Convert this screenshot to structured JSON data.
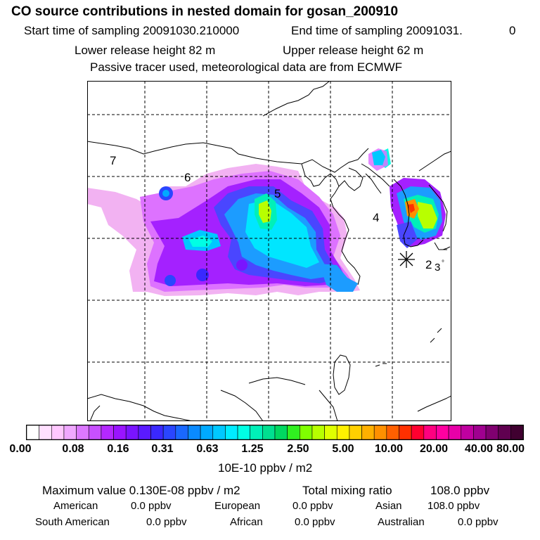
{
  "header": {
    "title": "CO  source contributions in nested domain for gosan_200910",
    "start_label": "Start time of sampling 20091030.210000",
    "end_label": "End time of sampling 20091031.",
    "end_value": "0",
    "lower_label": "Lower release height   82 m",
    "upper_label": "Upper release height   62 m",
    "note": "Passive tracer used, meteorological data are from ECMWF"
  },
  "map": {
    "point_labels": [
      "7",
      "6",
      "5",
      "4",
      "2",
      "3"
    ],
    "degree_mark": "°"
  },
  "colorbar": {
    "tick_labels": [
      "0.00",
      "0.08",
      "0.16",
      "0.31",
      "0.63",
      "1.25",
      "2.50",
      "5.00",
      "10.00",
      "20.00",
      "40.00",
      "80.00"
    ],
    "colors": [
      "#ffffff",
      "#ffe0ff",
      "#ffc8ff",
      "#f0a8ff",
      "#dc78ff",
      "#c850ff",
      "#b428ff",
      "#9a14ff",
      "#7a14ff",
      "#5a1aff",
      "#3a28ff",
      "#2a46ff",
      "#1a68ff",
      "#0a8aff",
      "#00aaff",
      "#00c8ff",
      "#00ecff",
      "#00ffe4",
      "#00f0b8",
      "#00e090",
      "#00d860",
      "#30f020",
      "#80ff00",
      "#b8ff00",
      "#e0ff00",
      "#fff000",
      "#ffd000",
      "#ffb000",
      "#ff9000",
      "#ff6000",
      "#ff3000",
      "#ff0030",
      "#ff0080",
      "#ff00a0",
      "#e800a8",
      "#c000a0",
      "#a00090",
      "#800070",
      "#600050",
      "#400030"
    ],
    "units": "10E-10 ppbv / m2"
  },
  "stats": {
    "max_label": "Maximum value  0.130E-08 ppbv / m2",
    "total_label": "Total mixing ratio",
    "total_value": "108.0 ppbv",
    "regions": [
      {
        "name": "American",
        "value": "0.0 ppbv"
      },
      {
        "name": "European",
        "value": "0.0 ppbv"
      },
      {
        "name": "Asian",
        "value": "108.0 ppbv"
      },
      {
        "name": "South American",
        "value": "0.0 ppbv"
      },
      {
        "name": "African",
        "value": "0.0 ppbv"
      },
      {
        "name": "Australian",
        "value": "0.0 ppbv"
      }
    ]
  }
}
